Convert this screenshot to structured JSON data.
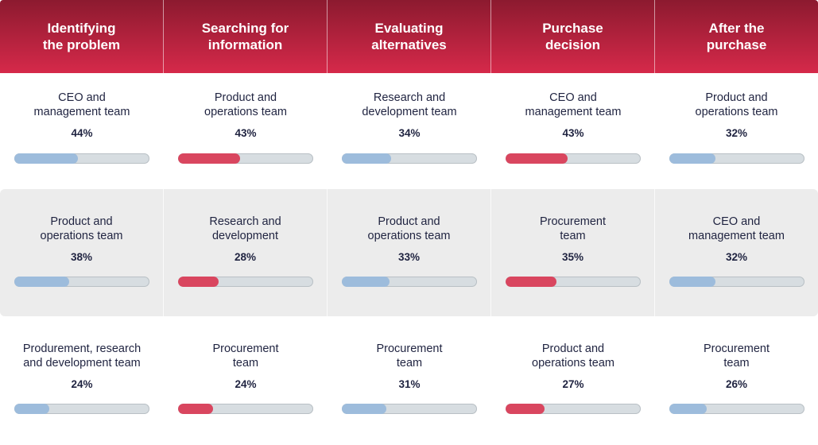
{
  "chart_data": {
    "type": "table",
    "columns": [
      "Identifying\nthe problem",
      "Searching for\ninformation",
      "Evaluating\nalternatives",
      "Purchase\ndecision",
      "After the\npurchase"
    ],
    "colors": {
      "blue": "#9dbcdc",
      "red": "#d9465f",
      "track": "#d7dde1",
      "header_top": "#8c1a2f",
      "header_bottom": "#d6294a"
    },
    "column_bar_colors": [
      "blue",
      "red",
      "blue",
      "red",
      "blue"
    ],
    "rows": [
      [
        {
          "label": "CEO and\nmanagement team",
          "value": 44,
          "text": "44%"
        },
        {
          "label": "Product and\noperations team",
          "value": 43,
          "text": "43%"
        },
        {
          "label": "Research and\ndevelopment team",
          "value": 34,
          "text": "34%"
        },
        {
          "label": "CEO and\nmanagement team",
          "value": 43,
          "text": "43%"
        },
        {
          "label": "Product and\noperations team",
          "value": 32,
          "text": "32%"
        }
      ],
      [
        {
          "label": "Product and\noperations team",
          "value": 38,
          "text": "38%"
        },
        {
          "label": "Research and\ndevelopment",
          "value": 28,
          "text": "28%"
        },
        {
          "label": "Product and\noperations team",
          "value": 33,
          "text": "33%"
        },
        {
          "label": "Procurement\nteam",
          "value": 35,
          "text": "35%"
        },
        {
          "label": "CEO and\nmanagement team",
          "value": 32,
          "text": "32%"
        }
      ],
      [
        {
          "label": "Produrement, research\nand development team",
          "value": 24,
          "text": "24%"
        },
        {
          "label": "Procurement\nteam",
          "value": 24,
          "text": "24%"
        },
        {
          "label": "Procurement\nteam",
          "value": 31,
          "text": "31%"
        },
        {
          "label": "Product and\noperations team",
          "value": 27,
          "text": "27%"
        },
        {
          "label": "Procurement\nteam",
          "value": 26,
          "text": "26%"
        }
      ]
    ]
  }
}
